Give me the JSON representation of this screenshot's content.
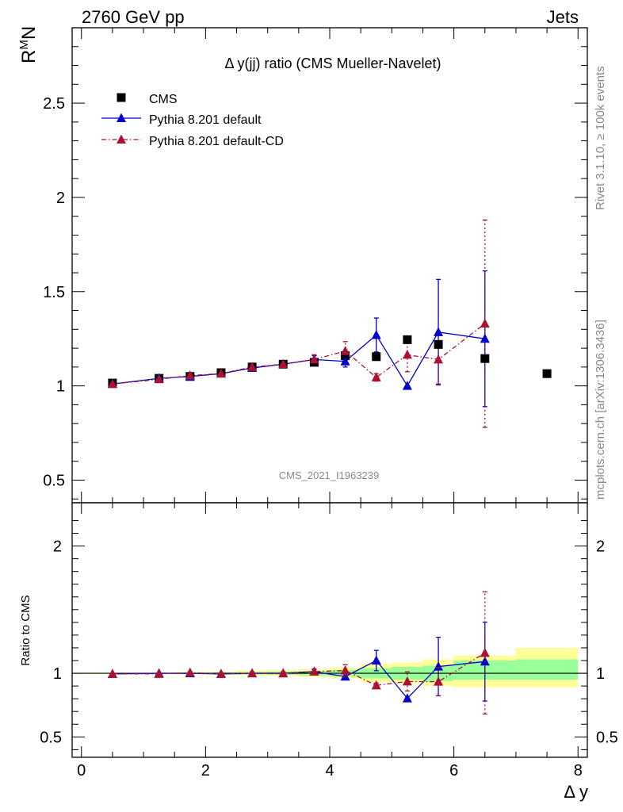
{
  "header": {
    "left": "2760 GeV pp",
    "right": "Jets"
  },
  "side_labels": {
    "rivet": "Rivet 3.1.10, ≥ 100k events",
    "mcplots": "mcplots.cern.ch [arXiv:1306.3436]"
  },
  "chart_data": {
    "type": "scatter",
    "title": "Δ y(jj) ratio (CMS Mueller-Navelet)",
    "analysis_id": "CMS_2021_I1963239",
    "main": {
      "ylabel_base": "R",
      "ylabel_sup": "M",
      "ylabel_tail": "N",
      "ylim": [
        0.38,
        2.9
      ],
      "yticks": [
        0.5,
        1,
        1.5,
        2,
        2.5
      ],
      "ytick_labels": [
        "0.5",
        "1",
        "1.5",
        "2",
        "2.5"
      ]
    },
    "ratio": {
      "ylabel": "Ratio to CMS",
      "ylim": [
        0.34,
        2.34
      ],
      "yticks": [
        0.5,
        1,
        2
      ],
      "ytick_labels": [
        "0.5",
        "1",
        "2"
      ],
      "yticks_right": [
        0.5,
        1,
        2
      ],
      "ytick_labels_right": [
        "0.5",
        "1",
        "2"
      ]
    },
    "x": {
      "label": "Δ y",
      "xlim": [
        -0.15,
        8.15
      ],
      "xticks": [
        0,
        2,
        4,
        6,
        8
      ],
      "xtick_labels": [
        "0",
        "2",
        "4",
        "6",
        "8"
      ]
    },
    "legend": {
      "placement": "top-left",
      "entries": [
        "CMS",
        "Pythia 8.201 default",
        "Pythia 8.201 default-CD"
      ]
    },
    "series": [
      {
        "name": "CMS",
        "color": "#000000",
        "marker": "square",
        "x": [
          0.5,
          1.25,
          1.75,
          2.25,
          2.75,
          3.25,
          3.75,
          4.25,
          4.75,
          5.25,
          5.75,
          6.5,
          7.5
        ],
        "y": [
          1.015,
          1.04,
          1.05,
          1.07,
          1.1,
          1.115,
          1.125,
          1.16,
          1.155,
          1.245,
          1.22,
          1.145,
          1.065
        ]
      },
      {
        "name": "Pythia 8.201 default",
        "color": "#0000cc",
        "marker": "triangle",
        "line": "solid",
        "x": [
          0.5,
          1.25,
          1.75,
          2.25,
          2.75,
          3.25,
          3.75,
          4.25,
          4.75,
          5.25,
          5.75,
          6.5
        ],
        "y": [
          1.01,
          1.04,
          1.05,
          1.065,
          1.095,
          1.115,
          1.14,
          1.13,
          1.27,
          1.0,
          1.285,
          1.25
        ],
        "yerr": [
          0.005,
          0.005,
          0.007,
          0.008,
          0.01,
          0.012,
          0.02,
          0.03,
          0.09,
          0.0,
          0.28,
          0.36
        ]
      },
      {
        "name": "Pythia 8.201 default-CD",
        "color": "#aa1133",
        "marker": "triangle",
        "line": "dashdot",
        "x": [
          0.5,
          1.25,
          1.75,
          2.25,
          2.75,
          3.25,
          3.75,
          4.25,
          4.75,
          5.25,
          5.75,
          6.5
        ],
        "y": [
          1.01,
          1.035,
          1.055,
          1.065,
          1.1,
          1.115,
          1.14,
          1.185,
          1.045,
          1.165,
          1.14,
          1.33
        ],
        "yerr": [
          0.005,
          0.005,
          0.008,
          0.008,
          0.01,
          0.012,
          0.025,
          0.05,
          0.02,
          0.09,
          0.13,
          0.55
        ]
      }
    ],
    "ratio_series": [
      {
        "name": "Pythia 8.201 default",
        "color": "#0000cc",
        "y": [
          0.995,
          1.0,
          1.0,
          0.995,
          1.0,
          1.0,
          1.013,
          0.974,
          1.1,
          0.803,
          1.053,
          1.092
        ],
        "yerr": [
          0.005,
          0.005,
          0.007,
          0.008,
          0.01,
          0.012,
          0.018,
          0.026,
          0.08,
          0.0,
          0.23,
          0.31
        ]
      },
      {
        "name": "Pythia 8.201 default-CD",
        "color": "#aa1133",
        "y": [
          0.995,
          0.995,
          1.005,
          0.995,
          1.0,
          1.0,
          1.013,
          1.022,
          0.905,
          0.936,
          0.934,
          1.16
        ],
        "yerr": [
          0.005,
          0.005,
          0.008,
          0.008,
          0.01,
          0.012,
          0.022,
          0.045,
          0.018,
          0.075,
          0.11,
          0.48
        ]
      }
    ],
    "bands": {
      "x_edges": [
        0,
        1,
        1.5,
        2,
        2.5,
        3,
        3.5,
        4,
        4.5,
        5,
        5.5,
        6,
        7,
        8
      ],
      "yellow_lo": [
        0.995,
        0.993,
        0.99,
        0.988,
        0.983,
        0.98,
        0.97,
        0.96,
        0.93,
        0.92,
        0.9,
        0.89,
        0.89
      ],
      "yellow_hi": [
        1.005,
        1.007,
        1.01,
        1.012,
        1.02,
        1.025,
        1.035,
        1.045,
        1.075,
        1.085,
        1.11,
        1.14,
        1.2
      ],
      "green_lo": [
        0.997,
        0.996,
        0.995,
        0.993,
        0.99,
        0.988,
        0.983,
        0.975,
        0.96,
        0.95,
        0.94,
        0.95,
        0.95
      ],
      "green_hi": [
        1.003,
        1.004,
        1.005,
        1.007,
        1.01,
        1.013,
        1.018,
        1.025,
        1.04,
        1.05,
        1.06,
        1.1,
        1.11
      ]
    }
  }
}
